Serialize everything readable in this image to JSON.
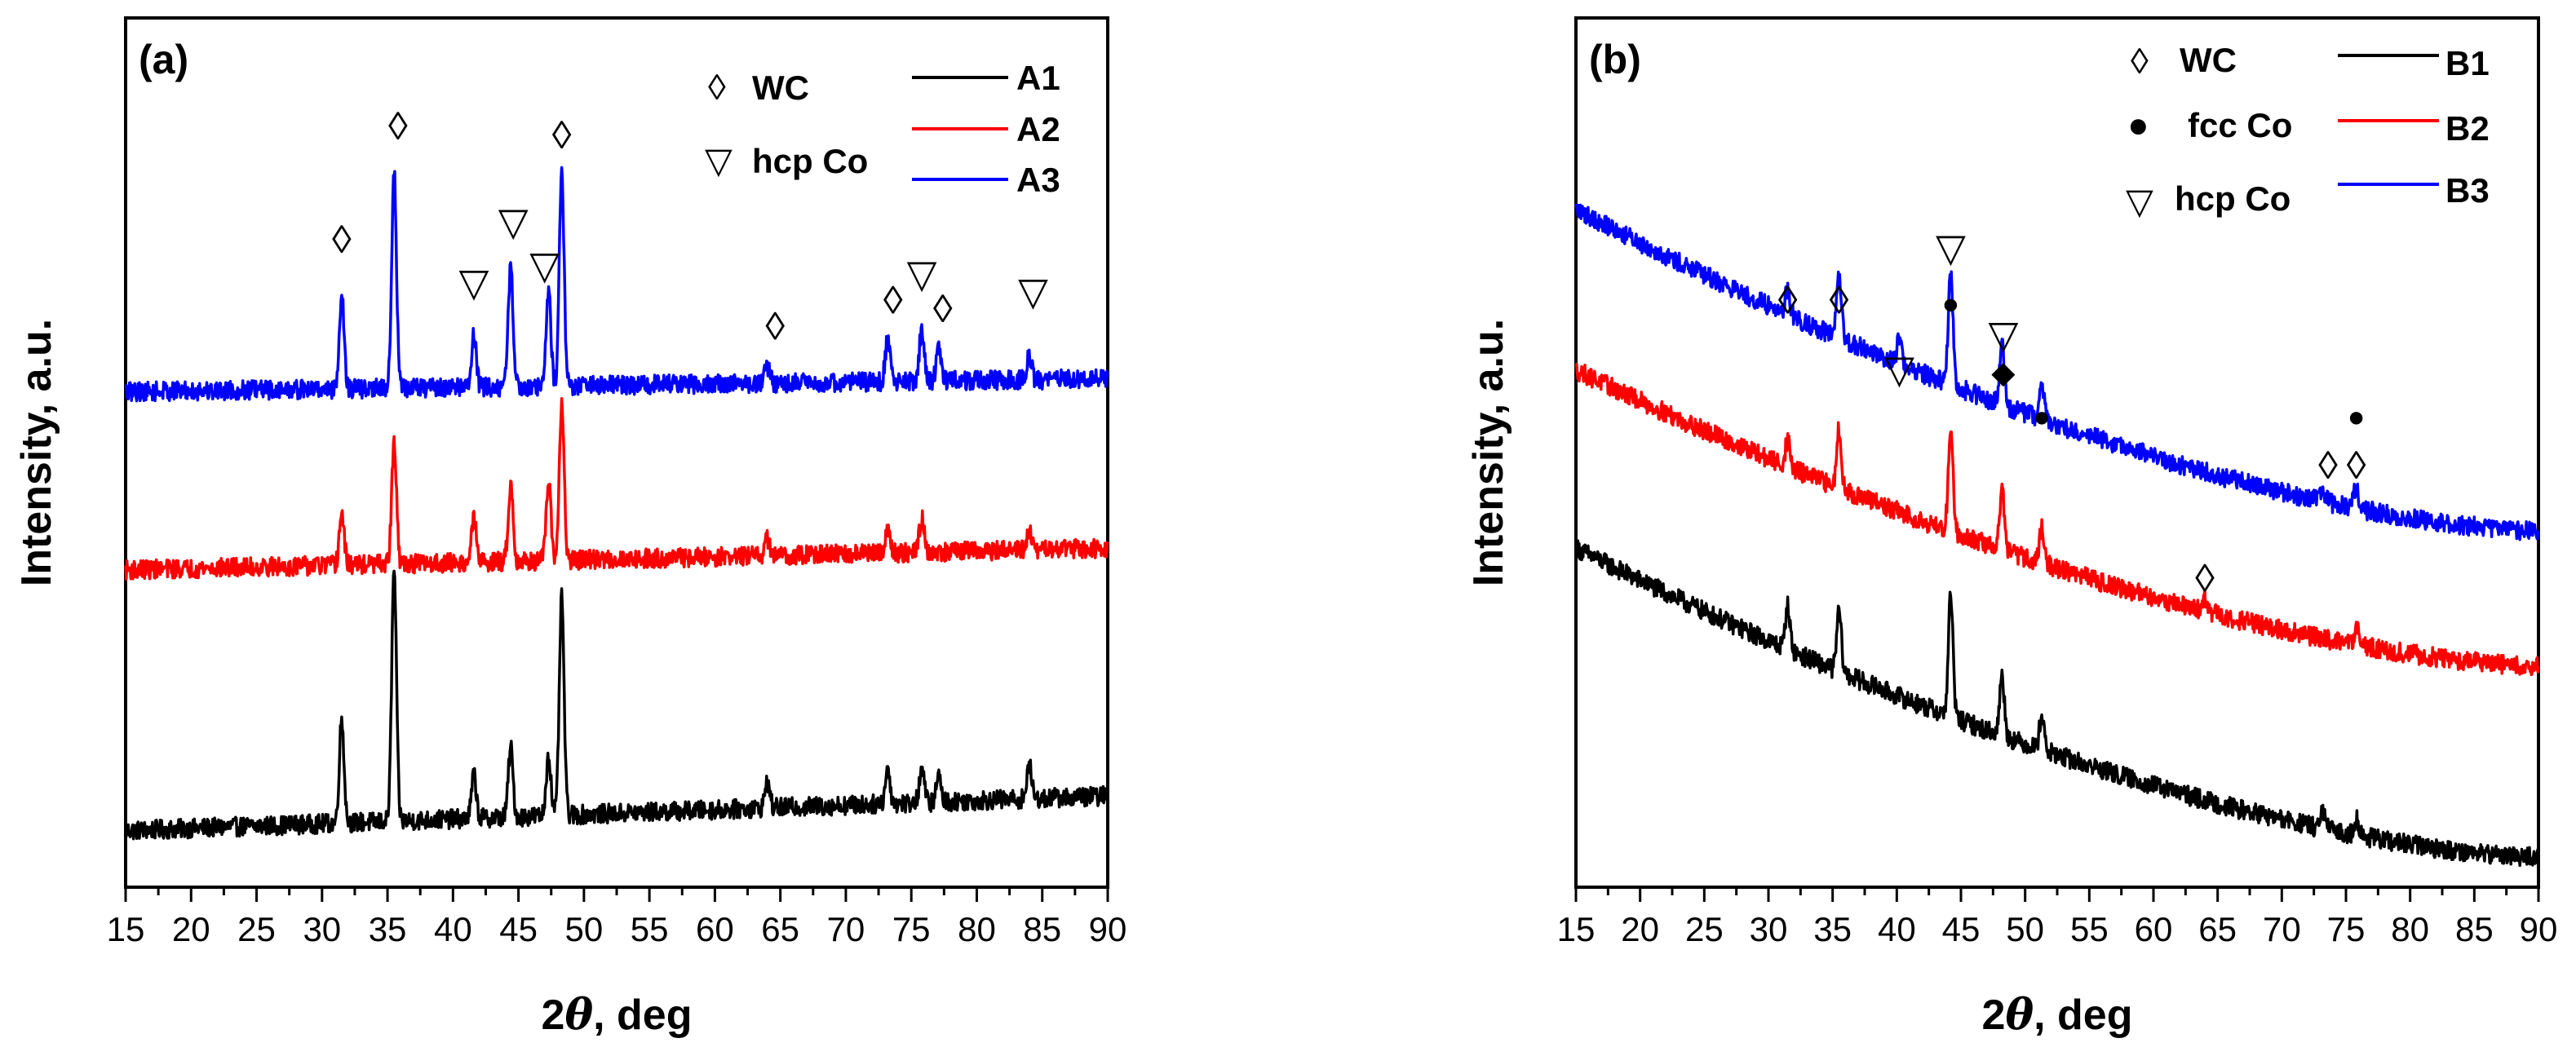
{
  "chart_data": [
    {
      "panel": "(a)",
      "type": "line",
      "title": "",
      "xlabel_prefix": "2",
      "xlabel_symbol": "θ",
      "xlabel_suffix": ", deg",
      "ylabel": "Intensity, a.u.",
      "xlim": [
        15,
        90
      ],
      "ylim": [
        0,
        100
      ],
      "x_ticks": [
        15,
        20,
        25,
        30,
        35,
        40,
        45,
        50,
        55,
        60,
        65,
        70,
        75,
        80,
        85,
        90
      ],
      "legend": {
        "position": "top-right",
        "phases": [
          {
            "symbol": "◊",
            "label": "WC"
          },
          {
            "symbol": "▽",
            "label": "hcp Co"
          }
        ],
        "series": [
          {
            "name": "A1",
            "color": "#000000"
          },
          {
            "name": "A2",
            "color": "#ff0000"
          },
          {
            "name": "A3",
            "color": "#0000ff"
          }
        ]
      },
      "series": [
        {
          "name": "A1",
          "color": "#000000",
          "baseline_start": 6.5,
          "baseline_end": 10.5,
          "peaks": [
            [
              31.5,
              12
            ],
            [
              35.5,
              29
            ],
            [
              41.6,
              5
            ],
            [
              44.4,
              8
            ],
            [
              47.3,
              7
            ],
            [
              48.3,
              25
            ],
            [
              64.0,
              3
            ],
            [
              73.2,
              4
            ],
            [
              75.8,
              4
            ],
            [
              77.1,
              3
            ],
            [
              84.0,
              4
            ]
          ]
        },
        {
          "name": "A2",
          "color": "#ff0000",
          "baseline_start": 36.5,
          "baseline_end": 39,
          "peaks": [
            [
              31.5,
              6
            ],
            [
              35.5,
              14
            ],
            [
              41.6,
              5
            ],
            [
              44.4,
              9
            ],
            [
              47.3,
              9
            ],
            [
              48.3,
              18
            ],
            [
              64.0,
              2
            ],
            [
              73.2,
              3
            ],
            [
              75.8,
              4
            ],
            [
              84.0,
              2
            ]
          ]
        },
        {
          "name": "A3",
          "color": "#0000ff",
          "baseline_start": 57,
          "baseline_end": 58.5,
          "peaks": [
            [
              31.5,
              11
            ],
            [
              35.5,
              25
            ],
            [
              41.6,
              6
            ],
            [
              44.4,
              14
            ],
            [
              47.3,
              11
            ],
            [
              48.3,
              25
            ],
            [
              64.0,
              2
            ],
            [
              73.2,
              5
            ],
            [
              75.8,
              6
            ],
            [
              77.1,
              4
            ],
            [
              84.0,
              3
            ]
          ]
        }
      ],
      "annotations": [
        {
          "symbol": "◊",
          "x": 31.5,
          "y": 73
        },
        {
          "symbol": "◊",
          "x": 35.8,
          "y": 86
        },
        {
          "symbol": "▽",
          "x": 41.6,
          "y": 68
        },
        {
          "symbol": "▽",
          "x": 44.6,
          "y": 75
        },
        {
          "symbol": "▽",
          "x": 47.0,
          "y": 70
        },
        {
          "symbol": "◊",
          "x": 48.3,
          "y": 85
        },
        {
          "symbol": "◊",
          "x": 64.6,
          "y": 63
        },
        {
          "symbol": "◊",
          "x": 73.6,
          "y": 66
        },
        {
          "symbol": "▽",
          "x": 75.8,
          "y": 69
        },
        {
          "symbol": "◊",
          "x": 77.4,
          "y": 65
        },
        {
          "symbol": "▽",
          "x": 84.3,
          "y": 67
        }
      ]
    },
    {
      "panel": "(b)",
      "type": "line",
      "title": "",
      "xlabel_prefix": "2",
      "xlabel_symbol": "θ",
      "xlabel_suffix": ", deg",
      "ylabel": "Intensity, a.u.",
      "xlim": [
        15,
        90
      ],
      "ylim": [
        0,
        100
      ],
      "x_ticks": [
        15,
        20,
        25,
        30,
        35,
        40,
        45,
        50,
        55,
        60,
        65,
        70,
        75,
        80,
        85,
        90
      ],
      "legend": {
        "position": "top-right",
        "phases": [
          {
            "symbol": "◊",
            "label": "WC"
          },
          {
            "symbol": "●",
            "label": "fcc Co"
          },
          {
            "symbol": "▽",
            "label": "hcp Co"
          }
        ],
        "series": [
          {
            "name": "B1",
            "color": "#000000"
          },
          {
            "name": "B2",
            "color": "#ff0000"
          },
          {
            "name": "B3",
            "color": "#0000ff"
          }
        ]
      },
      "series": [
        {
          "name": "B1",
          "color": "#000000",
          "baseline_start": 39,
          "baseline_end": 3.5,
          "peaks": [
            [
              31.5,
              5
            ],
            [
              35.5,
              7
            ],
            [
              44.2,
              14
            ],
            [
              48.2,
              7
            ],
            [
              51.3,
              4
            ],
            [
              73.2,
              2
            ],
            [
              75.8,
              2
            ]
          ]
        },
        {
          "name": "B2",
          "color": "#ff0000",
          "baseline_start": 59.5,
          "baseline_end": 25.5,
          "peaks": [
            [
              31.5,
              3
            ],
            [
              35.5,
              7
            ],
            [
              44.2,
              12
            ],
            [
              48.2,
              7
            ],
            [
              51.3,
              4
            ],
            [
              64.0,
              1.5
            ],
            [
              75.8,
              2
            ]
          ]
        },
        {
          "name": "B3",
          "color": "#0000ff",
          "baseline_start": 78,
          "baseline_end": 41,
          "peaks": [
            [
              31.5,
              3
            ],
            [
              35.5,
              7
            ],
            [
              40.2,
              3
            ],
            [
              44.2,
              13
            ],
            [
              48.2,
              7
            ],
            [
              51.3,
              4
            ],
            [
              73.2,
              1.5
            ],
            [
              75.8,
              2.5
            ]
          ]
        }
      ],
      "annotations": [
        {
          "symbol": "◊",
          "x": 31.5,
          "y": 66
        },
        {
          "symbol": "◊",
          "x": 35.5,
          "y": 66
        },
        {
          "symbol": "▽",
          "x": 40.2,
          "y": 58
        },
        {
          "symbol": "▽",
          "x": 44.2,
          "y": 72
        },
        {
          "symbol": "●",
          "x": 44.2,
          "y": 66
        },
        {
          "symbol": "▽",
          "x": 48.3,
          "y": 62
        },
        {
          "symbol": "◆",
          "x": 48.3,
          "y": 58
        },
        {
          "symbol": "●",
          "x": 51.3,
          "y": 53
        },
        {
          "symbol": "◊",
          "x": 64.0,
          "y": 34
        },
        {
          "symbol": "◊",
          "x": 73.6,
          "y": 47
        },
        {
          "symbol": "◊",
          "x": 75.8,
          "y": 47
        },
        {
          "symbol": "●",
          "x": 75.8,
          "y": 53
        }
      ]
    }
  ]
}
